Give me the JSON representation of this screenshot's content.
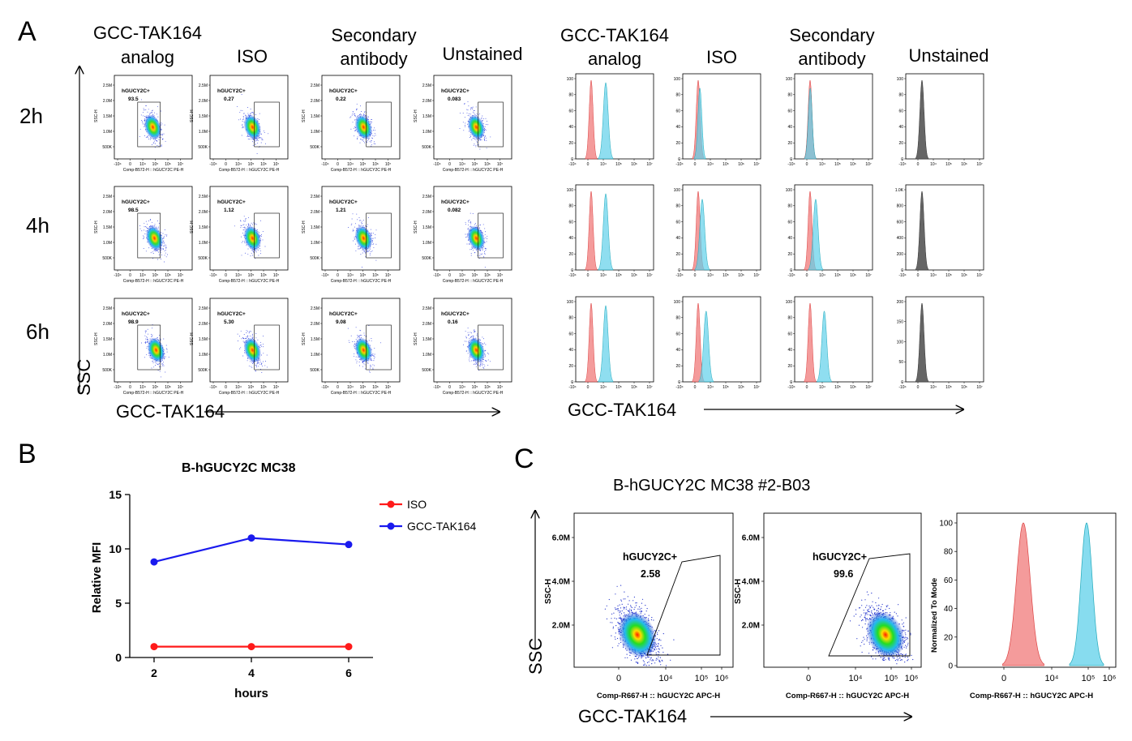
{
  "panels": {
    "A": {
      "label": "A",
      "columns": [
        "GCC-TAK164\nanalog",
        "ISO",
        "Secondary\nantibody",
        "Unstained"
      ],
      "hist_columns": [
        "GCC-TAK164\nanalog",
        "ISO",
        "Secondary\nantibody",
        "Unstained"
      ],
      "rows": [
        "2h",
        "4h",
        "6h"
      ],
      "y_axis": "SSC",
      "x_axis_dot": "GCC-TAK164",
      "x_axis_hist": "GCC-TAK164",
      "dot_xlabel": "Comp-B572-H :: hGUCY2C PE-H",
      "dot_ylabel": "SSC-H",
      "dot_yticks": [
        "2.5M",
        "2.0M",
        "1.5M",
        "1.0M",
        "500K"
      ],
      "dot_xticks": [
        "-10⁴",
        "0",
        "10⁴",
        "10⁵",
        "10⁶",
        "10⁷"
      ],
      "hist_xticks": [
        "-10⁴",
        "0",
        "10⁴",
        "10⁵",
        "10⁶",
        "10⁷"
      ],
      "gate_name": "hGUCY2C+",
      "gate_values": [
        [
          "93.5",
          "0.27",
          "0.22",
          "0.083"
        ],
        [
          "98.5",
          "1.12",
          "1.21",
          "0.082"
        ],
        [
          "98.9",
          "5.30",
          "9.08",
          "0.16"
        ]
      ],
      "hist_yticks_standard": [
        "100",
        "80",
        "60",
        "40",
        "20",
        "0"
      ],
      "hist_yticks_unstained": [
        [
          "100",
          "80",
          "60",
          "40",
          "20",
          "0"
        ],
        [
          "1.0K",
          "800",
          "600",
          "400",
          "200",
          "0"
        ],
        [
          "200",
          "150",
          "100",
          "50",
          "0"
        ]
      ],
      "colors": {
        "stained": "#5fd0ea",
        "control": "#f07a7a",
        "unstained": "#666666"
      }
    },
    "B": {
      "label": "B",
      "title": "B-hGUCY2C MC38"
    },
    "C": {
      "label": "C",
      "title": "B-hGUCY2C MC38 #2-B03",
      "y_axis": "SSC",
      "x_axis": "GCC-TAK164",
      "dot_xlabel": "Comp-R667-H :: hGUCY2C APC-H",
      "dot_ylabel": "SSC-H",
      "dot_yticks": [
        "6.0M",
        "4.0M",
        "2.0M"
      ],
      "dot_xticks": [
        "0",
        "10⁴",
        "10⁵",
        "10⁶"
      ],
      "gate_name": "hGUCY2C+",
      "gate_values": [
        "2.58",
        "99.6"
      ],
      "hist_ylabel": "Normalized To Mode",
      "hist_yticks": [
        "100",
        "80",
        "60",
        "40",
        "20",
        "0"
      ],
      "hist_xticks": [
        "0",
        "10⁴",
        "10⁵",
        "10⁶"
      ],
      "hist_xlabel": "Comp-R667-H :: hGUCY2C APC-H"
    }
  },
  "chart_data": {
    "type": "line",
    "title": "B-hGUCY2C MC38",
    "xlabel": "hours",
    "ylabel": "Relative MFI",
    "x": [
      2,
      4,
      6
    ],
    "xticks": [
      "2",
      "4",
      "6"
    ],
    "yticks": [
      "0",
      "5",
      "10",
      "15"
    ],
    "ylim": [
      0,
      15
    ],
    "series": [
      {
        "name": "ISO",
        "values": [
          1.0,
          1.0,
          1.0
        ],
        "color": "#ff1a1a"
      },
      {
        "name": "GCC-TAK164",
        "values": [
          8.8,
          11.0,
          10.4
        ],
        "color": "#1a1aee"
      }
    ],
    "legend": "right"
  }
}
